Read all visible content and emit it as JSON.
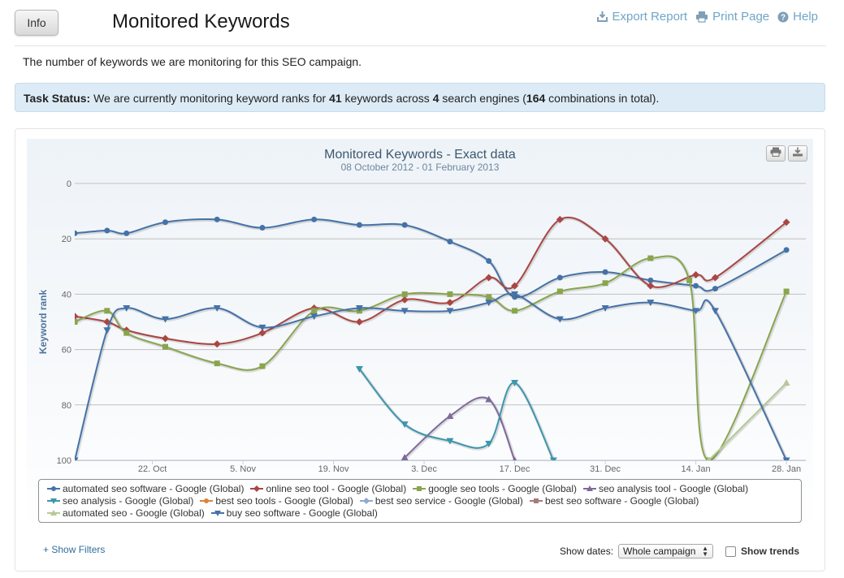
{
  "header": {
    "info_label": "Info",
    "title": "Monitored Keywords",
    "links": [
      {
        "label": "Export Report",
        "icon": "export-icon"
      },
      {
        "label": "Print Page",
        "icon": "printer-icon"
      },
      {
        "label": "Help",
        "icon": "help-icon"
      }
    ]
  },
  "description": "The number of keywords we are monitoring for this SEO campaign.",
  "task_status": {
    "label": "Task Status:",
    "text_1": " We are currently monitoring keyword ranks for ",
    "keywords": "41",
    "text_2": " keywords across ",
    "engines": "4",
    "text_3": " search engines (",
    "combinations": "164",
    "text_4": " combinations in total)."
  },
  "controls": {
    "show_filters": "+ Show Filters",
    "show_dates_label": "Show dates:",
    "show_dates_value": "Whole campaign",
    "show_trends_label": "Show trends"
  },
  "chart_data": {
    "type": "line",
    "title": "Monitored Keywords - Exact data",
    "subtitle": "08 October 2012 - 01 February 2013",
    "ylabel": "Keyword rank",
    "xlabel": "",
    "y_reversed": true,
    "ylim": [
      0,
      100
    ],
    "yticks": [
      0,
      20,
      40,
      60,
      80,
      100
    ],
    "xlim": [
      "2012-10-10",
      "2013-01-31"
    ],
    "xticks": [
      {
        "date": "2012-10-22",
        "label": "22. Oct"
      },
      {
        "date": "2012-11-05",
        "label": "5. Nov"
      },
      {
        "date": "2012-11-19",
        "label": "19. Nov"
      },
      {
        "date": "2012-12-03",
        "label": "3. Dec"
      },
      {
        "date": "2012-12-17",
        "label": "17. Dec"
      },
      {
        "date": "2012-12-31",
        "label": "31. Dec"
      },
      {
        "date": "2013-01-14",
        "label": "14. Jan"
      },
      {
        "date": "2013-01-28",
        "label": "28. Jan"
      }
    ],
    "legend_position": "bottom",
    "grid": true,
    "series": [
      {
        "name": "automated seo software - Google (Global)",
        "color": "#4572A7",
        "marker": "circle",
        "points": [
          [
            "2012-10-10",
            18
          ],
          [
            "2012-10-15",
            17
          ],
          [
            "2012-10-18",
            18
          ],
          [
            "2012-10-24",
            14
          ],
          [
            "2012-11-01",
            13
          ],
          [
            "2012-11-08",
            16
          ],
          [
            "2012-11-16",
            13
          ],
          [
            "2012-11-23",
            15
          ],
          [
            "2012-11-30",
            15
          ],
          [
            "2012-12-07",
            21
          ],
          [
            "2012-12-13",
            28
          ],
          [
            "2012-12-17",
            41
          ],
          [
            "2012-12-24",
            34
          ],
          [
            "2012-12-31",
            32
          ],
          [
            "2013-01-07",
            35
          ],
          [
            "2013-01-14",
            37
          ],
          [
            "2013-01-17",
            38
          ],
          [
            "2013-01-28",
            24
          ]
        ]
      },
      {
        "name": "online seo tool - Google (Global)",
        "color": "#AA4643",
        "marker": "diamond",
        "points": [
          [
            "2012-10-10",
            48
          ],
          [
            "2012-10-15",
            50
          ],
          [
            "2012-10-18",
            53
          ],
          [
            "2012-10-24",
            56
          ],
          [
            "2012-11-01",
            58
          ],
          [
            "2012-11-08",
            54
          ],
          [
            "2012-11-16",
            45
          ],
          [
            "2012-11-23",
            50
          ],
          [
            "2012-11-30",
            42
          ],
          [
            "2012-12-07",
            43
          ],
          [
            "2012-12-13",
            34
          ],
          [
            "2012-12-17",
            37
          ],
          [
            "2012-12-24",
            13
          ],
          [
            "2012-12-31",
            20
          ],
          [
            "2013-01-07",
            37
          ],
          [
            "2013-01-14",
            33
          ],
          [
            "2013-01-17",
            34
          ],
          [
            "2013-01-28",
            14
          ]
        ]
      },
      {
        "name": "google seo tools - Google (Global)",
        "color": "#89A54E",
        "marker": "square",
        "points": [
          [
            "2012-10-10",
            50
          ],
          [
            "2012-10-15",
            46
          ],
          [
            "2012-10-18",
            54
          ],
          [
            "2012-10-24",
            59
          ],
          [
            "2012-11-01",
            65
          ],
          [
            "2012-11-08",
            66
          ],
          [
            "2012-11-16",
            46
          ],
          [
            "2012-11-23",
            46
          ],
          [
            "2012-11-30",
            40
          ],
          [
            "2012-12-07",
            40
          ],
          [
            "2012-12-13",
            41
          ],
          [
            "2012-12-17",
            46
          ],
          [
            "2012-12-24",
            39
          ],
          [
            "2012-12-31",
            36
          ],
          [
            "2013-01-07",
            27
          ],
          [
            "2013-01-13",
            35
          ],
          [
            "2013-01-16",
            100
          ],
          [
            "2013-01-28",
            39
          ]
        ]
      },
      {
        "name": "seo analysis tool - Google (Global)",
        "color": "#80699B",
        "marker": "triangle",
        "points": [
          [
            "2012-11-30",
            99
          ],
          [
            "2012-12-07",
            84
          ],
          [
            "2012-12-13",
            78
          ],
          [
            "2012-12-17",
            100
          ]
        ]
      },
      {
        "name": "seo analysis - Google (Global)",
        "color": "#3D96AE",
        "marker": "triangle-down",
        "points": [
          [
            "2012-11-23",
            67
          ],
          [
            "2012-11-30",
            87
          ],
          [
            "2012-12-07",
            93
          ],
          [
            "2012-12-13",
            94
          ],
          [
            "2012-12-17",
            72
          ],
          [
            "2012-12-23",
            100
          ]
        ]
      },
      {
        "name": "best seo tools - Google (Global)",
        "color": "#DB843D",
        "marker": "circle",
        "points": []
      },
      {
        "name": "best seo service - Google (Global)",
        "color": "#92A8CD",
        "marker": "diamond",
        "points": []
      },
      {
        "name": "best seo software - Google (Global)",
        "color": "#A47D7C",
        "marker": "square",
        "points": []
      },
      {
        "name": "automated seo - Google (Global)",
        "color": "#B5CA92",
        "marker": "triangle",
        "points": [
          [
            "2013-01-16",
            100
          ],
          [
            "2013-01-28",
            72
          ]
        ]
      },
      {
        "name": "buy seo software - Google (Global)",
        "color": "#4572A7",
        "marker": "triangle-down",
        "points": [
          [
            "2012-10-10",
            100
          ],
          [
            "2012-10-15",
            53
          ],
          [
            "2012-10-18",
            45
          ],
          [
            "2012-10-24",
            49
          ],
          [
            "2012-11-01",
            45
          ],
          [
            "2012-11-08",
            52
          ],
          [
            "2012-11-16",
            48
          ],
          [
            "2012-11-23",
            45
          ],
          [
            "2012-11-30",
            46
          ],
          [
            "2012-12-07",
            46
          ],
          [
            "2012-12-13",
            43
          ],
          [
            "2012-12-17",
            40
          ],
          [
            "2012-12-24",
            49
          ],
          [
            "2012-12-31",
            45
          ],
          [
            "2013-01-07",
            43
          ],
          [
            "2013-01-14",
            46
          ],
          [
            "2013-01-17",
            46
          ],
          [
            "2013-01-28",
            100
          ]
        ]
      }
    ]
  }
}
